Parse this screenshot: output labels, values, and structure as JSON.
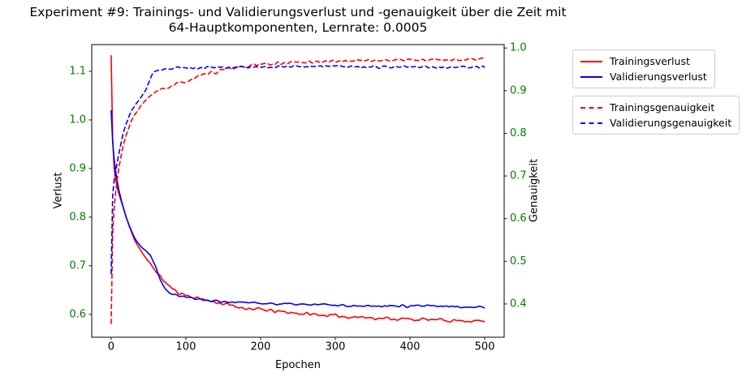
{
  "title": {
    "line1": "Experiment #9: Trainings- und Validierungsverlust und -genauigkeit über die Zeit mit",
    "line2": "64-Hauptkomponenten, Lernrate: 0.0005"
  },
  "axes": {
    "x": {
      "label": "Epochen",
      "ticks": [
        0,
        100,
        200,
        300,
        400,
        500
      ],
      "lim": [
        -26,
        526
      ],
      "decimals": 0,
      "color": "#000000"
    },
    "y_left": {
      "label": "Verlust",
      "ticks": [
        0.6,
        0.7,
        0.8,
        0.9,
        1.0,
        1.1
      ],
      "lim": [
        0.553,
        1.155
      ],
      "decimals": 1,
      "color": "#008000"
    },
    "y_right": {
      "label": "Genauigkeit",
      "ticks": [
        0.4,
        0.5,
        0.6,
        0.7,
        0.8,
        0.9,
        1.0
      ],
      "lim": [
        0.322,
        1.008
      ],
      "decimals": 1,
      "color": "#008000"
    }
  },
  "legends": [
    {
      "items": [
        {
          "label": "Trainingsverlust",
          "series": "train_loss"
        },
        {
          "label": "Validierungsverlust",
          "series": "val_loss"
        }
      ]
    },
    {
      "items": [
        {
          "label": "Trainingsgenauigkeit",
          "series": "train_acc"
        },
        {
          "label": "Validierungsgenauigkeit",
          "series": "val_acc"
        }
      ]
    }
  ],
  "chart_data": {
    "type": "line",
    "title": "Experiment #9: Trainings- und Validierungsverlust und -genauigkeit über die Zeit mit 64-Hauptkomponenten, Lernrate: 0.0005",
    "xlabel": "Epochen",
    "ylabel_left": "Verlust",
    "ylabel_right": "Genauigkeit",
    "x_range": [
      0,
      500
    ],
    "grid": false,
    "legend_position": "outside-right",
    "series": [
      {
        "id": "train_loss",
        "name": "Trainingsverlust",
        "axis": "left",
        "color": "#ff0000",
        "line_style": "solid",
        "noise": 0.0045,
        "seed": 11,
        "keypoints": [
          [
            0,
            1.133
          ],
          [
            1,
            1.04
          ],
          [
            2,
            0.96
          ],
          [
            3,
            0.915
          ],
          [
            5,
            0.885
          ],
          [
            8,
            0.862
          ],
          [
            10,
            0.85
          ],
          [
            13,
            0.835
          ],
          [
            16,
            0.82
          ],
          [
            20,
            0.8
          ],
          [
            24,
            0.782
          ],
          [
            28,
            0.766
          ],
          [
            32,
            0.752
          ],
          [
            36,
            0.741
          ],
          [
            40,
            0.731
          ],
          [
            45,
            0.719
          ],
          [
            50,
            0.708
          ],
          [
            55,
            0.698
          ],
          [
            60,
            0.689
          ],
          [
            65,
            0.679
          ],
          [
            70,
            0.67
          ],
          [
            75,
            0.662
          ],
          [
            80,
            0.655
          ],
          [
            85,
            0.649
          ],
          [
            90,
            0.645
          ],
          [
            95,
            0.642
          ],
          [
            100,
            0.64
          ],
          [
            110,
            0.635
          ],
          [
            120,
            0.632
          ],
          [
            130,
            0.628
          ],
          [
            140,
            0.625
          ],
          [
            150,
            0.622
          ],
          [
            160,
            0.618
          ],
          [
            170,
            0.615
          ],
          [
            180,
            0.613
          ],
          [
            190,
            0.611
          ],
          [
            200,
            0.61
          ],
          [
            215,
            0.607
          ],
          [
            230,
            0.605
          ],
          [
            245,
            0.603
          ],
          [
            260,
            0.601
          ],
          [
            280,
            0.599
          ],
          [
            300,
            0.597
          ],
          [
            320,
            0.595
          ],
          [
            340,
            0.594
          ],
          [
            360,
            0.592
          ],
          [
            380,
            0.591
          ],
          [
            400,
            0.59
          ],
          [
            425,
            0.589
          ],
          [
            450,
            0.588
          ],
          [
            475,
            0.587
          ],
          [
            500,
            0.586
          ]
        ]
      },
      {
        "id": "val_loss",
        "name": "Validierungsverlust",
        "axis": "left",
        "color": "#0000ff",
        "line_style": "solid",
        "noise": 0.0032,
        "seed": 22,
        "keypoints": [
          [
            0,
            1.02
          ],
          [
            2,
            0.955
          ],
          [
            4,
            0.92
          ],
          [
            6,
            0.895
          ],
          [
            8,
            0.875
          ],
          [
            10,
            0.858
          ],
          [
            13,
            0.838
          ],
          [
            16,
            0.821
          ],
          [
            20,
            0.801
          ],
          [
            24,
            0.784
          ],
          [
            28,
            0.769
          ],
          [
            32,
            0.756
          ],
          [
            36,
            0.746
          ],
          [
            40,
            0.739
          ],
          [
            44,
            0.734
          ],
          [
            48,
            0.73
          ],
          [
            52,
            0.723
          ],
          [
            56,
            0.711
          ],
          [
            60,
            0.697
          ],
          [
            63,
            0.684
          ],
          [
            66,
            0.672
          ],
          [
            70,
            0.66
          ],
          [
            74,
            0.651
          ],
          [
            78,
            0.646
          ],
          [
            82,
            0.643
          ],
          [
            88,
            0.64
          ],
          [
            95,
            0.638
          ],
          [
            100,
            0.636
          ],
          [
            110,
            0.633
          ],
          [
            120,
            0.631
          ],
          [
            130,
            0.629
          ],
          [
            140,
            0.628
          ],
          [
            155,
            0.626
          ],
          [
            170,
            0.625
          ],
          [
            185,
            0.624
          ],
          [
            200,
            0.623
          ],
          [
            220,
            0.622
          ],
          [
            240,
            0.621
          ],
          [
            260,
            0.62
          ],
          [
            280,
            0.62
          ],
          [
            300,
            0.619
          ],
          [
            330,
            0.618
          ],
          [
            360,
            0.618
          ],
          [
            390,
            0.617
          ],
          [
            420,
            0.617
          ],
          [
            455,
            0.616
          ],
          [
            500,
            0.615
          ]
        ]
      },
      {
        "id": "train_acc",
        "name": "Trainingsgenauigkeit",
        "axis": "right",
        "color": "#ff0000",
        "line_style": "dashed",
        "noise": 0.005,
        "seed": 33,
        "keypoints": [
          [
            0,
            0.353
          ],
          [
            1,
            0.5
          ],
          [
            2,
            0.565
          ],
          [
            3,
            0.6
          ],
          [
            4,
            0.625
          ],
          [
            6,
            0.66
          ],
          [
            8,
            0.69
          ],
          [
            10,
            0.715
          ],
          [
            13,
            0.745
          ],
          [
            16,
            0.77
          ],
          [
            20,
            0.795
          ],
          [
            24,
            0.815
          ],
          [
            28,
            0.832
          ],
          [
            32,
            0.845
          ],
          [
            36,
            0.856
          ],
          [
            40,
            0.865
          ],
          [
            45,
            0.875
          ],
          [
            50,
            0.883
          ],
          [
            55,
            0.89
          ],
          [
            60,
            0.896
          ],
          [
            65,
            0.9
          ],
          [
            70,
            0.904
          ],
          [
            75,
            0.907
          ],
          [
            80,
            0.91
          ],
          [
            85,
            0.913
          ],
          [
            90,
            0.916
          ],
          [
            95,
            0.919
          ],
          [
            100,
            0.922
          ],
          [
            110,
            0.928
          ],
          [
            120,
            0.934
          ],
          [
            130,
            0.939
          ],
          [
            140,
            0.944
          ],
          [
            150,
            0.948
          ],
          [
            160,
            0.952
          ],
          [
            170,
            0.955
          ],
          [
            180,
            0.957
          ],
          [
            190,
            0.959
          ],
          [
            200,
            0.961
          ],
          [
            215,
            0.963
          ],
          [
            230,
            0.965
          ],
          [
            245,
            0.966
          ],
          [
            260,
            0.967
          ],
          [
            280,
            0.968
          ],
          [
            300,
            0.969
          ],
          [
            320,
            0.97
          ],
          [
            340,
            0.971
          ],
          [
            365,
            0.971
          ],
          [
            390,
            0.972
          ],
          [
            420,
            0.972
          ],
          [
            450,
            0.973
          ],
          [
            475,
            0.973
          ],
          [
            500,
            0.973
          ]
        ]
      },
      {
        "id": "val_acc",
        "name": "Validierungsgenauigkeit",
        "axis": "right",
        "color": "#0000ff",
        "line_style": "dashed",
        "noise": 0.0042,
        "seed": 44,
        "keypoints": [
          [
            0,
            0.47
          ],
          [
            1,
            0.6
          ],
          [
            2,
            0.655
          ],
          [
            3,
            0.68
          ],
          [
            5,
            0.7
          ],
          [
            7,
            0.72
          ],
          [
            10,
            0.75
          ],
          [
            13,
            0.775
          ],
          [
            16,
            0.8
          ],
          [
            20,
            0.822
          ],
          [
            24,
            0.84
          ],
          [
            28,
            0.855
          ],
          [
            32,
            0.866
          ],
          [
            36,
            0.875
          ],
          [
            40,
            0.885
          ],
          [
            44,
            0.895
          ],
          [
            48,
            0.908
          ],
          [
            52,
            0.925
          ],
          [
            55,
            0.938
          ],
          [
            58,
            0.945
          ],
          [
            62,
            0.949
          ],
          [
            70,
            0.951
          ],
          [
            80,
            0.952
          ],
          [
            90,
            0.953
          ],
          [
            105,
            0.953
          ],
          [
            120,
            0.954
          ],
          [
            140,
            0.954
          ],
          [
            160,
            0.955
          ],
          [
            185,
            0.955
          ],
          [
            210,
            0.956
          ],
          [
            240,
            0.956
          ],
          [
            270,
            0.957
          ],
          [
            300,
            0.957
          ],
          [
            330,
            0.956
          ],
          [
            360,
            0.956
          ],
          [
            390,
            0.955
          ],
          [
            420,
            0.956
          ],
          [
            450,
            0.955
          ],
          [
            475,
            0.955
          ],
          [
            500,
            0.955
          ]
        ]
      }
    ]
  }
}
